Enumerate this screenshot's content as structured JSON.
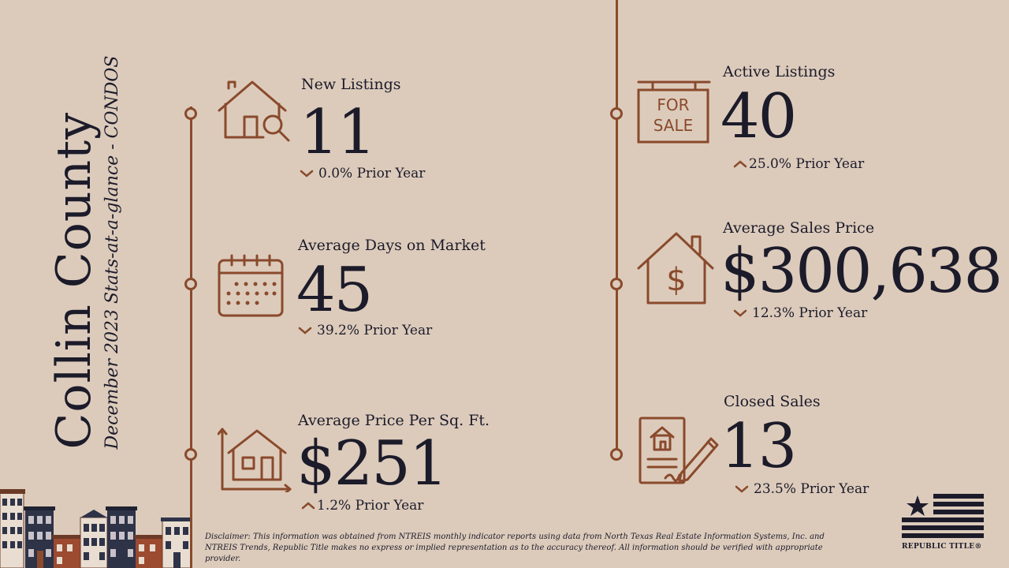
{
  "title": {
    "county": "Collin County",
    "subtitle": "December 2023 Stats-at-a-glance - CONDOS"
  },
  "stats": {
    "new_listings": {
      "label": "New Listings",
      "value": "11",
      "change": "0.0% Prior Year",
      "direction": "down"
    },
    "avg_days": {
      "label": "Average Days on Market",
      "value": "45",
      "change": "39.2% Prior Year",
      "direction": "down"
    },
    "avg_ppsf": {
      "label": "Average Price Per Sq. Ft.",
      "value": "$251",
      "change": "1.2% Prior Year",
      "direction": "up"
    },
    "active_listings": {
      "label": "Active Listings",
      "value": "40",
      "change": "25.0% Prior Year",
      "direction": "up"
    },
    "avg_sales_price": {
      "label": "Average Sales Price",
      "value": "$300,638",
      "change": "12.3% Prior Year",
      "direction": "down"
    },
    "closed_sales": {
      "label": "Closed Sales",
      "value": "13",
      "change": "23.5% Prior Year",
      "direction": "down"
    }
  },
  "icons": {
    "for_sale_line1": "FOR",
    "for_sale_line2": "SALE",
    "dollar": "$"
  },
  "disclaimer": "Disclaimer: This information was obtained from NTREIS monthly indicator reports using data from North Texas Real Estate Information Systems, Inc. and NTREIS Trends, Republic Title makes no express or implied representation as to the accuracy thereof. All information should be verified with appropriate provider.",
  "logo": {
    "name": "REPUBLIC TITLE®"
  },
  "colors": {
    "background": "#dccbbb",
    "accent": "#8a4a2c",
    "text": "#1c1b2a"
  }
}
